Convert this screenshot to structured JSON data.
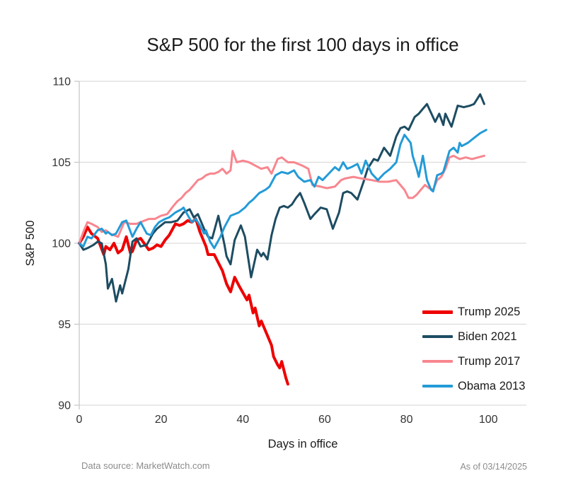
{
  "title": "S&P 500 for the first 100 days in office",
  "axes": {
    "y_label": "S&P 500",
    "x_label": "Days in office",
    "y_ticks": [
      110,
      105,
      100,
      95,
      90
    ],
    "x_ticks": [
      0,
      20,
      40,
      60,
      80,
      100
    ]
  },
  "footer": {
    "source": "Data source: MarketWatch.com",
    "as_of": "As of 03/14/2025"
  },
  "colors": {
    "grid": "#dcdcdc",
    "axis": "#c8c8c8",
    "tick_text": "#333333",
    "title_text": "#1a1a1a",
    "footer_text": "#8c8c8c"
  },
  "chart_data": {
    "type": "line",
    "title": "S&P 500 for the first 100 days in office",
    "xlabel": "Days in office",
    "ylabel": "S&P 500",
    "xlim": [
      0,
      109.3
    ],
    "ylim": [
      90,
      110
    ],
    "grid": "horizontal",
    "legend_position": "inside-right",
    "series": [
      {
        "name": "Trump 2025",
        "color": "#ee0000",
        "width": 4,
        "points": [
          [
            0,
            100
          ],
          [
            1,
            100.4
          ],
          [
            2,
            101
          ],
          [
            3,
            100.6
          ],
          [
            4.5,
            100.3
          ],
          [
            6,
            99.3
          ],
          [
            6.5,
            99.8
          ],
          [
            7.5,
            99.6
          ],
          [
            8.5,
            100
          ],
          [
            9.5,
            99.4
          ],
          [
            10.5,
            99.6
          ],
          [
            11.5,
            100.4
          ],
          [
            12.5,
            99.4
          ],
          [
            13,
            99.5
          ],
          [
            14,
            100.2
          ],
          [
            15,
            100.3
          ],
          [
            17,
            99.6
          ],
          [
            18,
            99.7
          ],
          [
            19,
            99.9
          ],
          [
            20,
            99.8
          ],
          [
            21,
            100.2
          ],
          [
            22,
            100.5
          ],
          [
            23.5,
            101.2
          ],
          [
            24.5,
            101.1
          ],
          [
            25.5,
            101.2
          ],
          [
            26.5,
            101.4
          ],
          [
            27.5,
            101.3
          ],
          [
            28.5,
            101.5
          ],
          [
            29.5,
            100.7
          ],
          [
            31,
            99.8
          ],
          [
            31.5,
            99.3
          ],
          [
            33,
            99.3
          ],
          [
            34,
            98.8
          ],
          [
            35,
            98.3
          ],
          [
            36,
            97.5
          ],
          [
            37,
            97
          ],
          [
            38,
            97.9
          ],
          [
            39,
            97.4
          ],
          [
            41,
            96.5
          ],
          [
            41.5,
            96.8
          ],
          [
            42.5,
            95.7
          ],
          [
            43,
            96
          ],
          [
            44,
            94.9
          ],
          [
            44.5,
            95.2
          ],
          [
            46,
            94.3
          ],
          [
            47,
            93.7
          ],
          [
            47.5,
            93
          ],
          [
            48.5,
            92.5
          ],
          [
            49,
            92.3
          ],
          [
            49.5,
            92.7
          ],
          [
            50.5,
            91.7
          ],
          [
            51,
            91.3
          ]
        ]
      },
      {
        "name": "Biden 2021",
        "color": "#1d4c62",
        "width": 3,
        "points": [
          [
            0,
            100
          ],
          [
            1,
            99.6
          ],
          [
            2,
            99.7
          ],
          [
            3.5,
            99.9
          ],
          [
            4.5,
            100.1
          ],
          [
            5.5,
            100
          ],
          [
            6.5,
            98.7
          ],
          [
            7,
            97.2
          ],
          [
            8,
            97.8
          ],
          [
            9,
            96.4
          ],
          [
            10,
            97.4
          ],
          [
            10.5,
            96.9
          ],
          [
            12,
            98.4
          ],
          [
            13,
            100.1
          ],
          [
            14,
            100.3
          ],
          [
            15,
            99.8
          ],
          [
            16.5,
            99.9
          ],
          [
            18,
            100.6
          ],
          [
            19,
            100.9
          ],
          [
            20,
            101.1
          ],
          [
            21,
            101.3
          ],
          [
            22.5,
            101.3
          ],
          [
            24,
            101.4
          ],
          [
            25.5,
            101.9
          ],
          [
            27,
            102.1
          ],
          [
            28,
            101.6
          ],
          [
            29,
            101.8
          ],
          [
            30.5,
            100.9
          ],
          [
            31.5,
            100.4
          ],
          [
            32.5,
            100.3
          ],
          [
            34,
            101.7
          ],
          [
            35.5,
            99.9
          ],
          [
            36,
            99.2
          ],
          [
            37,
            98.7
          ],
          [
            38,
            100.2
          ],
          [
            39.5,
            101.1
          ],
          [
            40.5,
            100.4
          ],
          [
            42,
            97.9
          ],
          [
            43.5,
            99.6
          ],
          [
            44.5,
            99.2
          ],
          [
            45,
            99.4
          ],
          [
            46,
            99
          ],
          [
            47,
            100.5
          ],
          [
            48,
            101.5
          ],
          [
            49,
            102.2
          ],
          [
            50,
            102.3
          ],
          [
            51,
            102.2
          ],
          [
            52,
            102.4
          ],
          [
            53,
            102.8
          ],
          [
            54,
            103.1
          ],
          [
            55,
            102.5
          ],
          [
            56.5,
            101.5
          ],
          [
            57.5,
            101.8
          ],
          [
            59,
            102.2
          ],
          [
            60.5,
            102.1
          ],
          [
            62,
            100.9
          ],
          [
            63.5,
            101.9
          ],
          [
            64.5,
            103.1
          ],
          [
            65.5,
            103.2
          ],
          [
            66.5,
            103.1
          ],
          [
            68,
            102.7
          ],
          [
            69.5,
            103.8
          ],
          [
            70.5,
            104.6
          ],
          [
            72,
            105.2
          ],
          [
            73,
            105.1
          ],
          [
            74.5,
            105.9
          ],
          [
            76,
            105.4
          ],
          [
            77.5,
            106.6
          ],
          [
            78.5,
            107.1
          ],
          [
            79.5,
            107.2
          ],
          [
            80.5,
            107
          ],
          [
            82,
            107.8
          ],
          [
            83,
            108
          ],
          [
            84,
            108.3
          ],
          [
            85,
            108.6
          ],
          [
            87,
            107.5
          ],
          [
            88,
            108
          ],
          [
            89,
            107.3
          ],
          [
            89.5,
            108
          ],
          [
            91,
            107.2
          ],
          [
            92.5,
            108.5
          ],
          [
            94,
            108.4
          ],
          [
            95.5,
            108.5
          ],
          [
            96.5,
            108.6
          ],
          [
            98,
            109.2
          ],
          [
            99,
            108.6
          ]
        ]
      },
      {
        "name": "Trump 2017",
        "color": "#f8868e",
        "width": 3,
        "points": [
          [
            0,
            100
          ],
          [
            1,
            100.7
          ],
          [
            2,
            101.3
          ],
          [
            3,
            101.2
          ],
          [
            4.5,
            101
          ],
          [
            5.5,
            100.7
          ],
          [
            6.5,
            100.8
          ],
          [
            7.5,
            100.6
          ],
          [
            8.5,
            100.5
          ],
          [
            9.5,
            100.4
          ],
          [
            11,
            101.3
          ],
          [
            12.5,
            101.2
          ],
          [
            14,
            101.2
          ],
          [
            15,
            101.3
          ],
          [
            17,
            101.5
          ],
          [
            18.5,
            101.5
          ],
          [
            20,
            101.7
          ],
          [
            21.5,
            101.8
          ],
          [
            23,
            102.3
          ],
          [
            24,
            102.6
          ],
          [
            25,
            102.8
          ],
          [
            26,
            103.1
          ],
          [
            27,
            103.3
          ],
          [
            28,
            103.6
          ],
          [
            29,
            103.9
          ],
          [
            30,
            104
          ],
          [
            31,
            104.2
          ],
          [
            32,
            104.3
          ],
          [
            33,
            104.3
          ],
          [
            34,
            104.4
          ],
          [
            35,
            104.6
          ],
          [
            36,
            104.3
          ],
          [
            37,
            104.5
          ],
          [
            37.5,
            105.7
          ],
          [
            38.5,
            105
          ],
          [
            40,
            105.1
          ],
          [
            41.5,
            105
          ],
          [
            43,
            104.8
          ],
          [
            44.5,
            104.6
          ],
          [
            46,
            104.7
          ],
          [
            47,
            104.3
          ],
          [
            48.5,
            105.2
          ],
          [
            49.5,
            105.3
          ],
          [
            51,
            105
          ],
          [
            52.5,
            105
          ],
          [
            54.5,
            104.8
          ],
          [
            56,
            104.6
          ],
          [
            57,
            103.6
          ],
          [
            59,
            103.5
          ],
          [
            60.5,
            103.4
          ],
          [
            62.5,
            103.5
          ],
          [
            64,
            103.9
          ],
          [
            65,
            104
          ],
          [
            67,
            104.1
          ],
          [
            69,
            104
          ],
          [
            71.5,
            103.9
          ],
          [
            73.5,
            103.8
          ],
          [
            75.5,
            103.8
          ],
          [
            77.5,
            103.9
          ],
          [
            78.5,
            103.6
          ],
          [
            79.5,
            103.3
          ],
          [
            80.5,
            102.8
          ],
          [
            81.5,
            102.8
          ],
          [
            82.5,
            103
          ],
          [
            83.5,
            103.3
          ],
          [
            84.5,
            103.6
          ],
          [
            85.5,
            103.4
          ],
          [
            86.5,
            103.3
          ],
          [
            87.5,
            103.9
          ],
          [
            88.5,
            104.1
          ],
          [
            89.5,
            104.6
          ],
          [
            90.5,
            105.3
          ],
          [
            91.5,
            105.4
          ],
          [
            93,
            105.2
          ],
          [
            94.5,
            105.3
          ],
          [
            96,
            105.2
          ],
          [
            97.5,
            105.3
          ],
          [
            99,
            105.4
          ]
        ]
      },
      {
        "name": "Obama 2013",
        "color": "#239bd7",
        "width": 3,
        "points": [
          [
            0,
            100
          ],
          [
            1,
            99.8
          ],
          [
            2,
            100.4
          ],
          [
            3,
            100.3
          ],
          [
            4.5,
            100.8
          ],
          [
            5.5,
            100.9
          ],
          [
            6.5,
            100.6
          ],
          [
            7,
            100.7
          ],
          [
            8,
            100.5
          ],
          [
            9,
            100.6
          ],
          [
            10.5,
            101.3
          ],
          [
            11.5,
            101.4
          ],
          [
            13,
            100.4
          ],
          [
            14,
            100.9
          ],
          [
            15,
            101.3
          ],
          [
            16.5,
            100.6
          ],
          [
            17.5,
            100.5
          ],
          [
            18.5,
            101
          ],
          [
            19.5,
            101.3
          ],
          [
            21,
            101.5
          ],
          [
            22,
            101.6
          ],
          [
            23.5,
            101.9
          ],
          [
            25,
            102.1
          ],
          [
            25.5,
            102.2
          ],
          [
            27.5,
            101.3
          ],
          [
            28.5,
            101.5
          ],
          [
            29.5,
            101.1
          ],
          [
            30.5,
            100.6
          ],
          [
            31,
            100.8
          ],
          [
            32,
            100.1
          ],
          [
            33,
            99.7
          ],
          [
            34.5,
            100.4
          ],
          [
            35.5,
            101
          ],
          [
            37,
            101.7
          ],
          [
            39,
            101.9
          ],
          [
            40.5,
            102.2
          ],
          [
            41.5,
            102.5
          ],
          [
            42.5,
            102.7
          ],
          [
            44,
            103.1
          ],
          [
            45.5,
            103.3
          ],
          [
            46.5,
            103.5
          ],
          [
            48,
            104.2
          ],
          [
            49.5,
            104.4
          ],
          [
            51,
            104.3
          ],
          [
            52.5,
            104.5
          ],
          [
            53.5,
            104.1
          ],
          [
            55,
            103.8
          ],
          [
            56.5,
            103.9
          ],
          [
            57.5,
            103.5
          ],
          [
            58.5,
            104.1
          ],
          [
            59.5,
            103.9
          ],
          [
            61,
            104.3
          ],
          [
            62.5,
            104.7
          ],
          [
            63.5,
            104.5
          ],
          [
            64.5,
            105
          ],
          [
            65.5,
            104.6
          ],
          [
            66.5,
            104.7
          ],
          [
            68,
            104.9
          ],
          [
            69,
            104.3
          ],
          [
            70,
            105.1
          ],
          [
            71.5,
            104.3
          ],
          [
            73,
            103.9
          ],
          [
            74.5,
            104.3
          ],
          [
            76,
            104.6
          ],
          [
            77.5,
            105
          ],
          [
            78.5,
            106.1
          ],
          [
            79.5,
            106.7
          ],
          [
            81,
            106.2
          ],
          [
            81.5,
            105.4
          ],
          [
            82.5,
            104.6
          ],
          [
            83,
            104.1
          ],
          [
            84,
            105.4
          ],
          [
            85,
            103.9
          ],
          [
            86,
            103.3
          ],
          [
            86.5,
            103.2
          ],
          [
            87.5,
            104.2
          ],
          [
            88.5,
            104.3
          ],
          [
            89,
            104.4
          ],
          [
            90.5,
            105.7
          ],
          [
            91.5,
            105.9
          ],
          [
            92.5,
            105.6
          ],
          [
            93,
            106.2
          ],
          [
            93.5,
            106
          ],
          [
            95,
            106.2
          ],
          [
            96.5,
            106.5
          ],
          [
            98,
            106.8
          ],
          [
            99.5,
            107
          ]
        ]
      }
    ]
  }
}
